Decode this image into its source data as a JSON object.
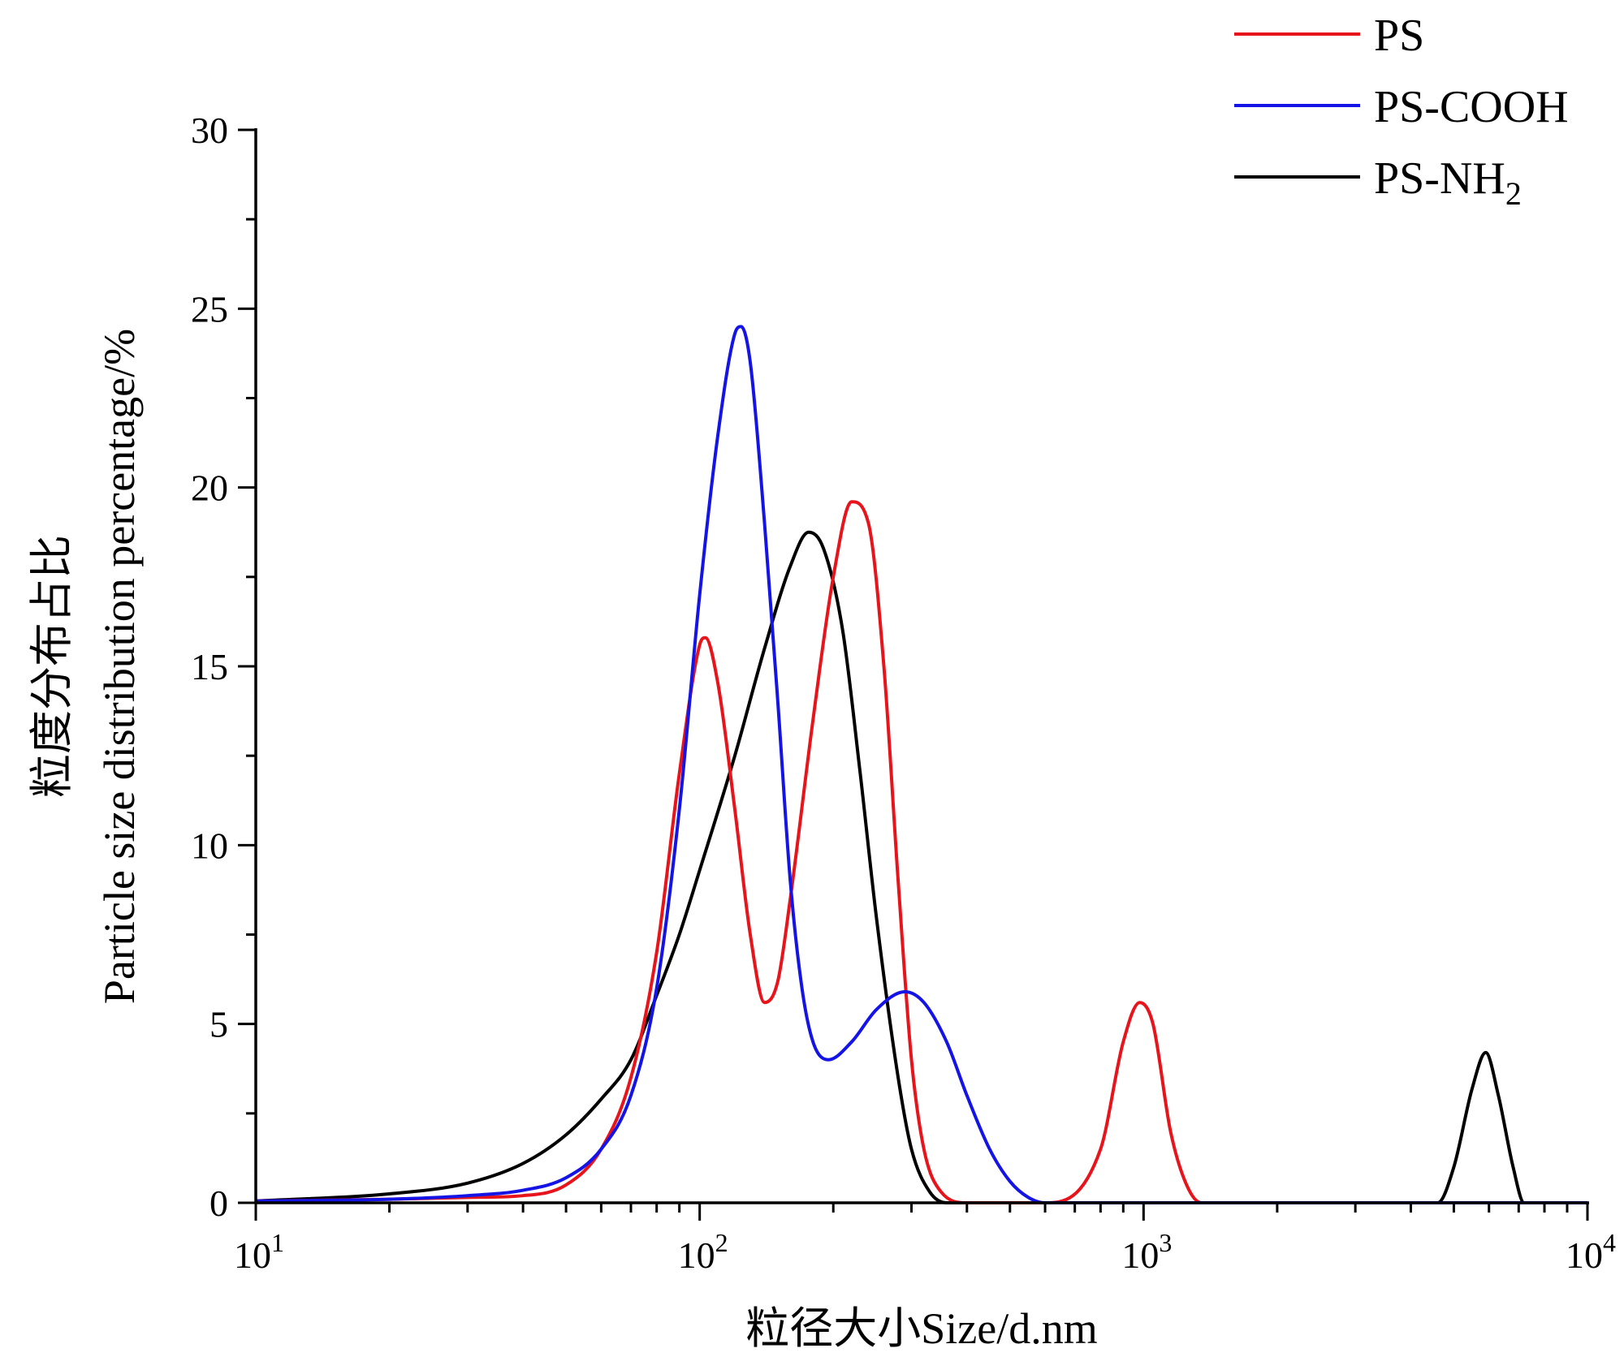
{
  "chart_data": {
    "type": "line",
    "xlabel": "粒径大小Size/d.nm",
    "ylabel_line1": "粒度分布占比",
    "ylabel_line2": "Particle size distribution percentage/%",
    "x_scale": "log",
    "xlim": [
      10,
      10000
    ],
    "ylim": [
      0,
      30
    ],
    "x_ticks": [
      {
        "value": 10,
        "base": "10",
        "exp": "1"
      },
      {
        "value": 100,
        "base": "10",
        "exp": "2"
      },
      {
        "value": 1000,
        "base": "10",
        "exp": "3"
      },
      {
        "value": 10000,
        "base": "10",
        "exp": "4"
      }
    ],
    "y_ticks": [
      0,
      5,
      10,
      15,
      20,
      25,
      30
    ],
    "grid": false,
    "legend_position": "top-right",
    "series": [
      {
        "name": "PS",
        "color": "#e8141c",
        "points": [
          [
            10,
            0.05
          ],
          [
            20,
            0.1
          ],
          [
            30,
            0.15
          ],
          [
            40,
            0.2
          ],
          [
            50,
            0.5
          ],
          [
            60,
            1.5
          ],
          [
            70,
            3.5
          ],
          [
            80,
            7
          ],
          [
            90,
            12
          ],
          [
            100,
            15.6
          ],
          [
            103,
            15.8
          ],
          [
            110,
            14.5
          ],
          [
            120,
            11
          ],
          [
            130,
            7.5
          ],
          [
            140,
            5.6
          ],
          [
            150,
            6.2
          ],
          [
            160,
            8.5
          ],
          [
            180,
            13.5
          ],
          [
            200,
            17.5
          ],
          [
            220,
            19.6
          ],
          [
            240,
            19
          ],
          [
            260,
            15
          ],
          [
            280,
            9
          ],
          [
            300,
            4
          ],
          [
            320,
            1.5
          ],
          [
            350,
            0.3
          ],
          [
            400,
            0
          ],
          [
            600,
            0
          ],
          [
            800,
            1.5
          ],
          [
            900,
            4.5
          ],
          [
            980,
            5.6
          ],
          [
            1050,
            5
          ],
          [
            1150,
            2
          ],
          [
            1250,
            0.5
          ],
          [
            1350,
            0
          ],
          [
            10000,
            0
          ]
        ]
      },
      {
        "name": "PS-COOH",
        "color": "#1414e6",
        "points": [
          [
            10,
            0.05
          ],
          [
            20,
            0.1
          ],
          [
            30,
            0.2
          ],
          [
            40,
            0.35
          ],
          [
            50,
            0.7
          ],
          [
            60,
            1.5
          ],
          [
            70,
            3
          ],
          [
            80,
            6
          ],
          [
            90,
            11
          ],
          [
            100,
            17
          ],
          [
            110,
            21.5
          ],
          [
            120,
            24.3
          ],
          [
            124,
            24.5
          ],
          [
            130,
            23.5
          ],
          [
            140,
            19
          ],
          [
            150,
            14
          ],
          [
            160,
            9
          ],
          [
            170,
            6
          ],
          [
            180,
            4.5
          ],
          [
            195,
            4
          ],
          [
            220,
            4.5
          ],
          [
            250,
            5.4
          ],
          [
            290,
            5.9
          ],
          [
            320,
            5.6
          ],
          [
            360,
            4.5
          ],
          [
            400,
            3
          ],
          [
            450,
            1.5
          ],
          [
            500,
            0.6
          ],
          [
            550,
            0.15
          ],
          [
            600,
            0
          ],
          [
            10000,
            0
          ]
        ]
      },
      {
        "name": "PS-NH₂",
        "name_main": "PS-NH",
        "name_sub": "2",
        "color": "#000000",
        "points": [
          [
            10,
            0.05
          ],
          [
            20,
            0.25
          ],
          [
            30,
            0.55
          ],
          [
            40,
            1.1
          ],
          [
            50,
            1.9
          ],
          [
            60,
            2.9
          ],
          [
            70,
            4
          ],
          [
            80,
            5.8
          ],
          [
            90,
            7.5
          ],
          [
            100,
            9.3
          ],
          [
            120,
            12.5
          ],
          [
            140,
            15.5
          ],
          [
            160,
            17.8
          ],
          [
            176,
            18.75
          ],
          [
            190,
            18.3
          ],
          [
            210,
            16
          ],
          [
            230,
            12
          ],
          [
            250,
            8
          ],
          [
            280,
            3.5
          ],
          [
            300,
            1.5
          ],
          [
            330,
            0.3
          ],
          [
            360,
            0
          ],
          [
            4600,
            0
          ],
          [
            5000,
            1
          ],
          [
            5500,
            3.2
          ],
          [
            5900,
            4.2
          ],
          [
            6300,
            3
          ],
          [
            6800,
            1
          ],
          [
            7200,
            0
          ],
          [
            10000,
            0
          ]
        ]
      }
    ]
  }
}
